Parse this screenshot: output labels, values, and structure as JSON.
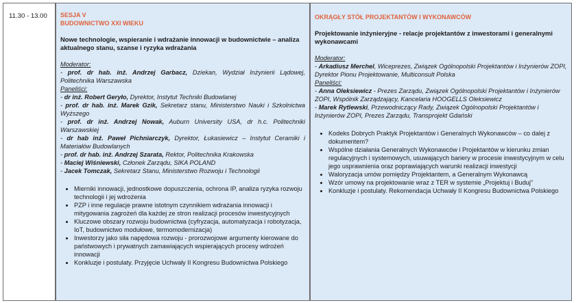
{
  "time": "11.30 - 13.00",
  "left": {
    "title_lines": [
      "SESJA V",
      "BUDOWNICTWO XXI WIEKU"
    ],
    "subtitle": "Nowe technologie, wspieranie i wdrażanie innowacji w budownictwie – analiza aktualnego stanu, szanse i ryzyka wdrażania",
    "moderator_label": "Moderator:",
    "moderators": [
      {
        "name": "prof. dr hab. inż. Andrzej Garbacz,",
        "desc": " Dziekan, Wydział Inżynierii Lądowej, Politechnika Warszawska"
      }
    ],
    "panelists_label": "Paneliści:",
    "panelists": [
      {
        "name": "dr inż. Robert Geryło,",
        "desc": " Dyrektor, Instytut Techniki Budowlanej"
      },
      {
        "name": "prof. dr hab. inż. Marek Gzik,",
        "desc": " Sekretarz stanu, Ministerstwo Nauki i Szkolnictwa Wyższego"
      },
      {
        "name": "prof. dr inż. Andrzej Nowak,",
        "desc": " Auburn University USA, dr h.c. Politechniki Warszawskiej"
      },
      {
        "name": "dr hab inż. Paweł Pichniarczyk,",
        "desc": " Dyrektor, Łukasiewicz – Instytut Ceramiki i Materiałów Budowlanych"
      },
      {
        "name": "prof. dr hab. inż. Andrzej Szarata,",
        "desc": " Rektor, Politechnika Krakowska"
      },
      {
        "name": "Maciej Wiśniewski,",
        "desc": " Członek Zarządu, SIKA POLAND"
      },
      {
        "name": "Jacek Tomczak,",
        "desc": " Sekretarz Stanu, Ministerstwo Rozwoju i Technologii"
      }
    ],
    "topics": [
      "Mierniki innowacji, jednostkowe dopuszczenia, ochrona IP, analiza ryzyka rozwoju technologii i jej wdrożenia",
      "PZP i inne regulacje prawne istotnym czynnikiem wdrażania innowacji i mitygowania zagrożeń dla każdej ze stron realizacji procesów inwestycyjnych",
      "Kluczowe obszary rozwoju budownictwa (cyfryzacja, automatyzacja i robotyzacja, IoT, budownictwo modułowe, termomodernizacja)",
      "Inwestorzy jako siła napędowa rozwoju - prorozwojowe argumenty kierowane do państwowych i prywatnych zamawiających wspierających procesy wdrożeń innowacji",
      "Konkluzje i postulaty. Przyjęcie Uchwały II Kongresu Budownictwa Polskiego"
    ]
  },
  "right": {
    "title_lines": [
      "OKRĄGŁY STÓŁ PROJEKTANTÓW I WYKONAWCÓW"
    ],
    "subtitle": "Projektowanie inżynieryjne - relacje projektantów z inwestorami i generalnymi wykonawcami",
    "moderator_label": "Moderator:",
    "moderators": [
      {
        "name": "Arkadiusz Merchel",
        "desc": ", Wiceprezes, Związek Ogólnopolski Projektantów i Inżynierów ZOPI, Dyrektor Pionu Projektowanie, Multiconsult Polska"
      }
    ],
    "panelists_label": "Paneliści:",
    "panelists": [
      {
        "name": "Anna Oleksiewicz",
        "desc": " - Prezes Zarządu, Związek Ogólnopolski Projektantów i Inżynierów ZOPI, Wspólnik Zarządzający, Kancelaria HOOGELLS Oleksiewicz"
      },
      {
        "name": "Marek Rytlewski",
        "desc": ", Przewodniczący Rady, Związek Ogólnopolski Projektantów i Inżynierów ZOPI, Prezes Zarządu, Transprojekt Gdański"
      }
    ],
    "topics": [
      "Kodeks Dobrych Praktyk Projektantów i Generalnych Wykonawców – co dalej z dokumentem?",
      "Wspólne działania Generalnych Wykonawców i Projektantów w kierunku zmian regulacyjnych i systemowych, usuwających bariery w procesie inwestycyjnym w celu jego usprawnienia oraz poprawiających warunki realizacji inwestycji",
      "Waloryzacja umów pomiędzy Projektantem, a Generalnym Wykonawcą",
      "Wzór umowy na projektowanie wraz z TER w systemie „Projektuj i Buduj”",
      "Konkluzje i postulaty. Rekomendacja Uchwały II Kongresu Budownictwa Polskiego"
    ]
  },
  "colors": {
    "accent": "#e0623a",
    "cell_bg": "#dce9f7",
    "border": "#6b6b6b"
  }
}
